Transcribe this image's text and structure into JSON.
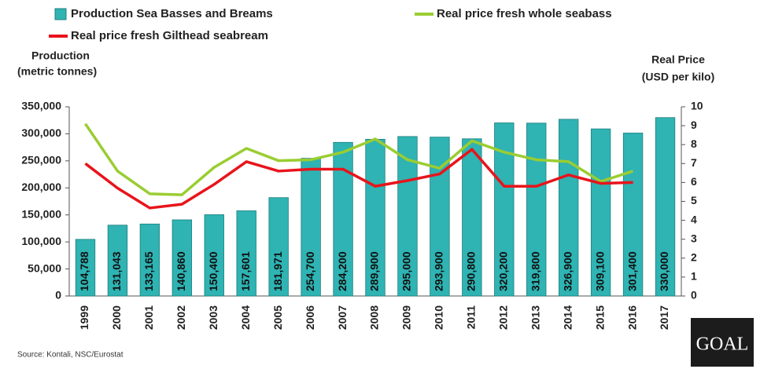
{
  "chart_data": {
    "type": "bar",
    "categories": [
      "1999",
      "2000",
      "2001",
      "2002",
      "2003",
      "2004",
      "2005",
      "2006",
      "2007",
      "2008",
      "2009",
      "2010",
      "2011",
      "2012",
      "2013",
      "2014",
      "2015",
      "2016",
      "2017"
    ],
    "series": [
      {
        "name": "Production Sea Basses and Breams",
        "type": "bar",
        "color": "#2fb3b3",
        "values": [
          104788,
          131043,
          133165,
          140860,
          150400,
          157601,
          181971,
          254700,
          284200,
          289900,
          295000,
          293900,
          290800,
          320200,
          319800,
          326900,
          309100,
          301400,
          330000
        ],
        "value_labels": [
          "104,788",
          "131,043",
          "133,165",
          "140,860",
          "150,400",
          "157,601",
          "181,971",
          "254,700",
          "284,200",
          "289,900",
          "295,000",
          "293,900",
          "290,800",
          "320,200",
          "319,800",
          "326,900",
          "309,100",
          "301,400",
          "330,000"
        ]
      },
      {
        "name": "Real price fresh whole seabass",
        "type": "line",
        "axis": "y2",
        "color": "#9acd32",
        "values": [
          9.1,
          6.6,
          5.4,
          5.35,
          6.8,
          7.8,
          7.15,
          7.2,
          7.6,
          8.3,
          7.2,
          6.75,
          8.2,
          7.6,
          7.2,
          7.1,
          6.05,
          6.6,
          null
        ]
      },
      {
        "name": "Real price fresh Gilthead seabream",
        "type": "line",
        "axis": "y2",
        "color": "#e8141b",
        "values": [
          7.0,
          5.7,
          4.65,
          4.85,
          5.9,
          7.1,
          6.6,
          6.7,
          6.7,
          5.8,
          6.1,
          6.45,
          7.75,
          5.8,
          5.8,
          6.4,
          5.95,
          6.0,
          null
        ]
      }
    ],
    "ylabel": [
      "Production",
      "(metric tonnes)"
    ],
    "y2label": [
      "Real Price",
      "(USD per kilo)"
    ],
    "ylim": [
      0,
      350000
    ],
    "yticks": [
      0,
      {
        "value": 50000,
        "label": "50,000"
      },
      {
        "value": 100000,
        "label": "100,000"
      },
      {
        "value": 150000,
        "label": "150,000"
      },
      {
        "value": 200000,
        "label": "200,000"
      },
      {
        "value": 250000,
        "label": "250,000"
      },
      {
        "value": 300000,
        "label": "300,000"
      },
      {
        "value": 350000,
        "label": "350,000"
      }
    ],
    "y2lim": [
      0,
      10
    ],
    "y2ticks": [
      0,
      1,
      2,
      3,
      4,
      5,
      6,
      7,
      8,
      9,
      10
    ],
    "legend": "top",
    "source": "Source: Kontali, NSC/Eurostat",
    "logo": "GOAL"
  }
}
